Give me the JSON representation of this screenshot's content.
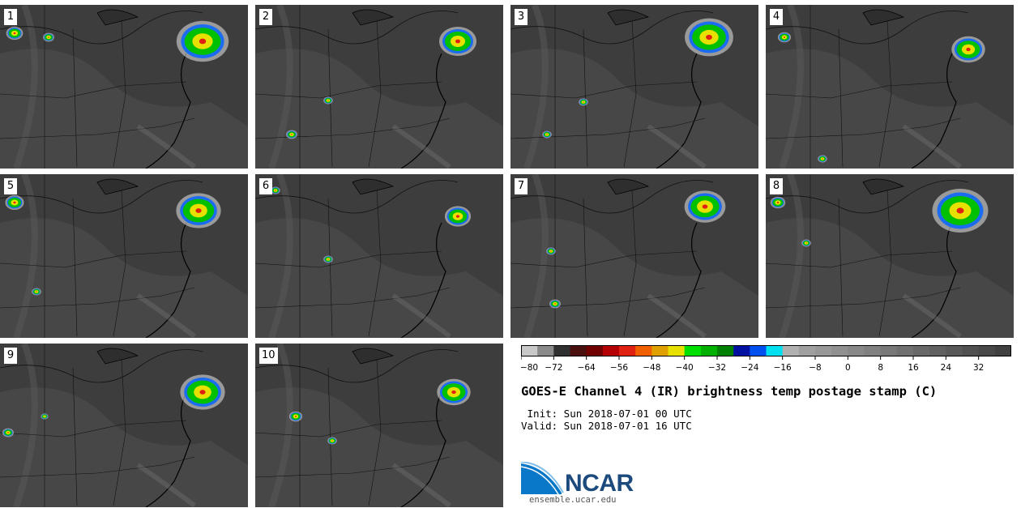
{
  "panels": [
    {
      "label": "1"
    },
    {
      "label": "2"
    },
    {
      "label": "3"
    },
    {
      "label": "4"
    },
    {
      "label": "5"
    },
    {
      "label": "6"
    },
    {
      "label": "7"
    },
    {
      "label": "8"
    },
    {
      "label": "9"
    },
    {
      "label": "10"
    }
  ],
  "title": "GOES-E Channel 4 (IR) brightness temp postage stamp (C)",
  "init_line": " Init: Sun 2018-07-01 00 UTC",
  "valid_line": "Valid: Sun 2018-07-01 16 UTC",
  "logo": {
    "text": "NCAR",
    "url": "ensemble.ucar.edu"
  },
  "colorbar": {
    "min": -80,
    "max": 40,
    "tick_labels": [
      "−80",
      "−72",
      "−64",
      "−56",
      "−48",
      "−40",
      "−32",
      "−24",
      "−16",
      "−8",
      "0",
      "8",
      "16",
      "24",
      "32"
    ],
    "tick_values": [
      -80,
      -72,
      -64,
      -56,
      -48,
      -40,
      -32,
      -24,
      -16,
      -8,
      0,
      8,
      16,
      24,
      32
    ],
    "colors": [
      "#c8c8c8",
      "#8a8a8a",
      "#303030",
      "#4a1010",
      "#700000",
      "#b40000",
      "#e02010",
      "#f06000",
      "#e0a000",
      "#e8e000",
      "#00e000",
      "#00b000",
      "#008000",
      "#0010a0",
      "#0050f0",
      "#00e0f0",
      "#b0b0b0",
      "#a0a0a0",
      "#989898",
      "#909090",
      "#888888",
      "#808080",
      "#787878",
      "#707070",
      "#686868",
      "#606060",
      "#585858",
      "#505050",
      "#484848",
      "#404040"
    ]
  }
}
